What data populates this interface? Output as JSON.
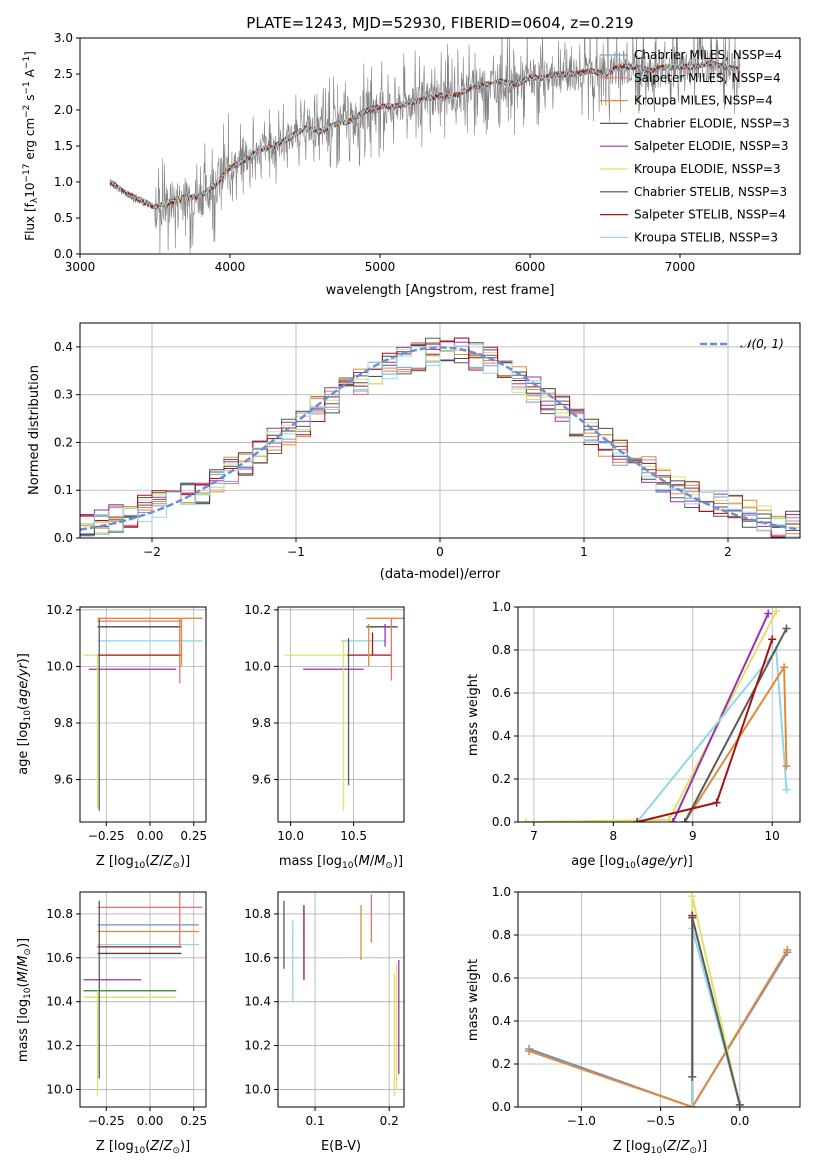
{
  "chart_data": [
    {
      "id": "spectrum",
      "type": "line",
      "title": "PLATE=1243, MJD=52930, FIBERID=0604, z=0.219",
      "xlabel": "wavelength [Angstrom, rest frame]",
      "ylabel": "Flux [f$_\\lambda$10$^{-17}$ erg cm$^{-2}$ s$^{-1}$ A$^{-1}$]",
      "xlim": [
        3000,
        7800
      ],
      "ylim": [
        0,
        3.0
      ],
      "xticks": [
        "3000",
        "4000",
        "5000",
        "6000",
        "7000"
      ],
      "yticks": [
        "0.0",
        "0.5",
        "1.0",
        "1.5",
        "2.0",
        "2.5",
        "3.0"
      ],
      "grid": false,
      "legend_position": "top-right",
      "data_line": {
        "name": "data",
        "color": "#808080",
        "x": [
          3200,
          3300,
          3400,
          3500,
          3600,
          3700,
          3800,
          3900,
          4000,
          4100,
          4200,
          4300,
          4400,
          4500,
          4600,
          4700,
          4800,
          4900,
          5000,
          5100,
          5200,
          5300,
          5400,
          5500,
          5600,
          5700,
          5800,
          5900,
          6000,
          6100,
          6200,
          6300,
          6400,
          6500,
          6600,
          6700,
          6800,
          6900,
          7000,
          7100,
          7200,
          7300,
          7400
        ],
        "y": [
          1.0,
          0.85,
          0.75,
          0.65,
          0.72,
          0.78,
          0.8,
          0.95,
          1.2,
          1.3,
          1.45,
          1.5,
          1.62,
          1.75,
          1.7,
          1.8,
          1.85,
          1.98,
          2.05,
          2.05,
          2.1,
          2.15,
          2.2,
          2.2,
          2.3,
          2.35,
          2.4,
          2.35,
          2.45,
          2.45,
          2.5,
          2.5,
          2.55,
          2.5,
          2.6,
          2.6,
          2.55,
          2.6,
          2.6,
          2.6,
          2.65,
          2.6,
          2.55
        ]
      },
      "series": [
        {
          "name": "Chabrier MILES, N$_{SSP}$=4",
          "color": "#7b9fd6"
        },
        {
          "name": "Salpeter MILES, N$_{SSP}$=4",
          "color": "#e8756b"
        },
        {
          "name": "Kroupa MILES, N$_{SSP}$=4",
          "color": "#e08a3b"
        },
        {
          "name": "Chabrier ELODIE, N$_{SSP}$=3",
          "color": "#5a5a5a"
        },
        {
          "name": "Salpeter ELODIE, N$_{SSP}$=3",
          "color": "#9b30b0"
        },
        {
          "name": "Kroupa ELODIE, N$_{SSP}$=3",
          "color": "#dde36a"
        },
        {
          "name": "Chabrier STELIB, N$_{SSP}$=3",
          "color": "#4a4a4a"
        },
        {
          "name": "Salpeter STELIB, N$_{SSP}$=4",
          "color": "#a31414"
        },
        {
          "name": "Kroupa STELIB, N$_{SSP}$=3",
          "color": "#8fd8e6"
        }
      ]
    },
    {
      "id": "residuals",
      "type": "line",
      "xlabel": "(data-model)/error",
      "ylabel": "Normed distribution",
      "xlim": [
        -2.5,
        2.5
      ],
      "ylim": [
        0,
        0.45
      ],
      "xticks": [
        "−2",
        "−1",
        "0",
        "1",
        "2"
      ],
      "yticks": [
        "0.0",
        "0.1",
        "0.2",
        "0.3",
        "0.4"
      ],
      "grid": true,
      "legend_position": "top-right",
      "gaussian": {
        "name": "$\\mathcal{N}(0,1)$",
        "color": "#6a8fd4"
      },
      "bin_edges_start": -2.5,
      "bin_width": 0.1,
      "base_values": [
        0.02,
        0.03,
        0.04,
        0.05,
        0.06,
        0.07,
        0.08,
        0.09,
        0.1,
        0.12,
        0.14,
        0.16,
        0.18,
        0.2,
        0.22,
        0.24,
        0.27,
        0.29,
        0.31,
        0.33,
        0.35,
        0.36,
        0.37,
        0.38,
        0.39,
        0.39,
        0.39,
        0.38,
        0.37,
        0.35,
        0.33,
        0.31,
        0.29,
        0.27,
        0.24,
        0.22,
        0.2,
        0.18,
        0.16,
        0.14,
        0.12,
        0.1,
        0.09,
        0.08,
        0.07,
        0.06,
        0.05,
        0.04,
        0.03,
        0.03
      ],
      "series_colors": [
        "#7b9fd6",
        "#e8756b",
        "#e08a3b",
        "#5a5a5a",
        "#9b30b0",
        "#dde36a",
        "#4a4a4a",
        "#a31414",
        "#8fd8e6"
      ]
    },
    {
      "id": "age-vs-Z",
      "type": "scatter",
      "xlabel": "Z [log$_{10}$(Z/Z$_\\odot$)]",
      "ylabel": "age  [log$_{10}$(age/yr)]",
      "xlim": [
        -0.4,
        0.32
      ],
      "ylim": [
        9.45,
        10.21
      ],
      "xticks": [
        "−0.25",
        "0.00",
        "0.25"
      ],
      "yticks": [
        "9.6",
        "9.8",
        "10.0",
        "10.2"
      ],
      "grid": true,
      "hlines": [
        {
          "y": 10.17,
          "x0": -0.3,
          "x1": 0.3,
          "color": "#e08a3b"
        },
        {
          "y": 10.16,
          "x0": -0.3,
          "x1": 0.18,
          "color": "#e8756b"
        },
        {
          "y": 10.14,
          "x0": -0.3,
          "x1": 0.18,
          "color": "#4a4a4a"
        },
        {
          "y": 10.09,
          "x0": -0.3,
          "x1": 0.3,
          "color": "#8fd8e6"
        },
        {
          "y": 10.04,
          "x0": -0.38,
          "x1": 0.18,
          "color": "#dde36a"
        },
        {
          "y": 10.04,
          "x0": -0.3,
          "x1": 0.18,
          "color": "#a31414"
        },
        {
          "y": 9.99,
          "x0": -0.35,
          "x1": 0.15,
          "color": "#9b30b0"
        }
      ],
      "vlines": [
        {
          "x": -0.29,
          "y0": 9.49,
          "y1": 10.17,
          "color": "#5a5a5a"
        },
        {
          "x": -0.3,
          "y0": 9.5,
          "y1": 10.04,
          "color": "#dde36a"
        },
        {
          "x": 0.17,
          "y0": 9.94,
          "y1": 10.17,
          "color": "#e8756b"
        },
        {
          "x": 0.18,
          "y0": 10.0,
          "y1": 10.17,
          "color": "#e08a3b"
        }
      ]
    },
    {
      "id": "age-vs-mass",
      "type": "scatter",
      "xlabel": "mass [log$_{10}$(M/M$_\\odot$)]",
      "xlim": [
        9.9,
        10.9
      ],
      "ylim": [
        9.45,
        10.21
      ],
      "xticks": [
        "10.0",
        "10.5"
      ],
      "yticks": [
        "9.6",
        "9.8",
        "10.0",
        "10.2"
      ],
      "grid": true,
      "hlines": [
        {
          "y": 10.17,
          "x0": 10.6,
          "x1": 10.9,
          "color": "#e08a3b"
        },
        {
          "y": 10.14,
          "x0": 10.6,
          "x1": 10.85,
          "color": "#4a4a4a"
        },
        {
          "y": 10.09,
          "x0": 10.4,
          "x1": 10.75,
          "color": "#8fd8e6"
        },
        {
          "y": 10.04,
          "x0": 9.95,
          "x1": 10.5,
          "color": "#dde36a"
        },
        {
          "y": 10.04,
          "x0": 10.45,
          "x1": 10.8,
          "color": "#a31414"
        },
        {
          "y": 9.99,
          "x0": 10.1,
          "x1": 10.58,
          "color": "#9b30b0"
        }
      ],
      "vlines": [
        {
          "x": 10.42,
          "y0": 9.49,
          "y1": 10.09,
          "color": "#dde36a"
        },
        {
          "x": 10.46,
          "y0": 9.58,
          "y1": 10.1,
          "color": "#5a5a5a"
        },
        {
          "x": 10.62,
          "y0": 10.0,
          "y1": 10.15,
          "color": "#e08a3b"
        },
        {
          "x": 10.65,
          "y0": 10.04,
          "y1": 10.12,
          "color": "#a31414"
        },
        {
          "x": 10.75,
          "y0": 10.07,
          "y1": 10.15,
          "color": "#9b30b0"
        },
        {
          "x": 10.8,
          "y0": 9.95,
          "y1": 10.17,
          "color": "#e8756b"
        }
      ]
    },
    {
      "id": "mass-weight-vs-age",
      "type": "line",
      "xlabel": "age  [log$_{10}$(age/yr)]",
      "ylabel": "mass weight",
      "xlim": [
        6.8,
        10.35
      ],
      "ylim": [
        0,
        1.0
      ],
      "xticks": [
        "7",
        "8",
        "9",
        "10"
      ],
      "yticks": [
        "0.0",
        "0.2",
        "0.4",
        "0.6",
        "0.8",
        "1.0"
      ],
      "grid": true,
      "series": [
        {
          "color": "#dde36a",
          "x": [
            6.9,
            8.7,
            10.05
          ],
          "y": [
            0.0,
            0.01,
            0.98
          ]
        },
        {
          "color": "#9b30b0",
          "x": [
            8.75,
            9.95
          ],
          "y": [
            0.0,
            0.97
          ]
        },
        {
          "color": "#8fd8e6",
          "x": [
            8.3,
            10.05,
            10.18
          ],
          "y": [
            0.0,
            0.8,
            0.15
          ]
        },
        {
          "color": "#e08a3b",
          "x": [
            8.9,
            10.15,
            10.18
          ],
          "y": [
            0.0,
            0.72,
            0.26
          ]
        },
        {
          "color": "#5a5a5a",
          "x": [
            8.9,
            10.18
          ],
          "y": [
            0.0,
            0.9
          ]
        },
        {
          "color": "#a31414",
          "x": [
            8.3,
            9.3,
            10.0
          ],
          "y": [
            0.0,
            0.09,
            0.85
          ]
        }
      ]
    },
    {
      "id": "mass-vs-Z",
      "type": "scatter",
      "xlabel": "Z [log$_{10}$(Z/Z$_\\odot$)]",
      "ylabel": "mass [log$_{10}$(M/M$_\\odot$)]",
      "xlim": [
        -0.4,
        0.32
      ],
      "ylim": [
        9.92,
        10.9
      ],
      "xticks": [
        "−0.25",
        "0.00",
        "0.25"
      ],
      "yticks": [
        "10.0",
        "10.2",
        "10.4",
        "10.6",
        "10.8"
      ],
      "grid": true,
      "hlines": [
        {
          "y": 10.83,
          "x0": -0.3,
          "x1": 0.3,
          "color": "#e8756b"
        },
        {
          "y": 10.75,
          "x0": -0.3,
          "x1": 0.28,
          "color": "#6a8fd4"
        },
        {
          "y": 10.72,
          "x0": -0.3,
          "x1": 0.28,
          "color": "#e08a3b"
        },
        {
          "y": 10.66,
          "x0": -0.3,
          "x1": 0.28,
          "color": "#8fd8e6"
        },
        {
          "y": 10.65,
          "x0": -0.3,
          "x1": 0.18,
          "color": "#a31414"
        },
        {
          "y": 10.62,
          "x0": -0.3,
          "x1": 0.18,
          "color": "#4a4a4a"
        },
        {
          "y": 10.5,
          "x0": -0.38,
          "x1": -0.05,
          "color": "#9b30b0"
        },
        {
          "y": 10.45,
          "x0": -0.38,
          "x1": 0.15,
          "color": "#2e7d32"
        },
        {
          "y": 10.42,
          "x0": -0.38,
          "x1": 0.15,
          "color": "#dde36a"
        }
      ],
      "vlines": [
        {
          "x": -0.29,
          "y0": 10.05,
          "y1": 10.86,
          "color": "#5a5a5a"
        },
        {
          "x": -0.3,
          "y0": 9.97,
          "y1": 10.45,
          "color": "#dde36a"
        },
        {
          "x": 0.17,
          "y0": 10.65,
          "y1": 10.9,
          "color": "#e8756b"
        }
      ]
    },
    {
      "id": "mass-vs-EBV",
      "type": "scatter",
      "xlabel": "E(B-V)",
      "xlim": [
        0.05,
        0.22
      ],
      "ylim": [
        9.92,
        10.9
      ],
      "xticks": [
        "0.1",
        "0.2"
      ],
      "yticks": [
        "10.0",
        "10.2",
        "10.4",
        "10.6",
        "10.8"
      ],
      "grid": true,
      "vlines": [
        {
          "x": 0.058,
          "y0": 10.55,
          "y1": 10.86,
          "color": "#5a5a5a"
        },
        {
          "x": 0.07,
          "y0": 10.4,
          "y1": 10.77,
          "color": "#8fd8e6"
        },
        {
          "x": 0.085,
          "y0": 10.5,
          "y1": 10.84,
          "color": "#a31414"
        },
        {
          "x": 0.162,
          "y0": 10.59,
          "y1": 10.84,
          "color": "#e08a3b"
        },
        {
          "x": 0.176,
          "y0": 10.67,
          "y1": 10.89,
          "color": "#e8756b"
        },
        {
          "x": 0.207,
          "y0": 9.97,
          "y1": 10.53,
          "color": "#dde36a"
        },
        {
          "x": 0.21,
          "y0": 10.0,
          "y1": 10.57,
          "color": "#dde36a"
        },
        {
          "x": 0.213,
          "y0": 10.07,
          "y1": 10.59,
          "color": "#9b30b0"
        }
      ]
    },
    {
      "id": "mass-weight-vs-Z",
      "type": "line",
      "xlabel": "Z [log$_{10}$(Z/Z$_\\odot$)]",
      "ylabel": "mass weight",
      "xlim": [
        -1.4,
        0.38
      ],
      "ylim": [
        0,
        1.0
      ],
      "xticks": [
        "−1.0",
        "−0.5",
        "0.0"
      ],
      "yticks": [
        "0.0",
        "0.2",
        "0.4",
        "0.6",
        "0.8",
        "1.0"
      ],
      "grid": true,
      "series": [
        {
          "color": "#6a8fd4",
          "x": [
            -1.33,
            -0.3,
            0.3
          ],
          "y": [
            0.27,
            0.0,
            0.72
          ]
        },
        {
          "color": "#e08a3b",
          "x": [
            -1.33,
            -0.3,
            0.3
          ],
          "y": [
            0.26,
            0.0,
            0.73
          ]
        },
        {
          "color": "#dde36a",
          "x": [
            -0.3,
            -0.3,
            0.0
          ],
          "y": [
            0.0,
            0.98,
            0.01
          ]
        },
        {
          "color": "#a31414",
          "x": [
            -0.3,
            -0.3
          ],
          "y": [
            0.0,
            0.89
          ]
        },
        {
          "color": "#8fd8e6",
          "x": [
            -0.3,
            -0.3,
            0.0
          ],
          "y": [
            0.0,
            0.83,
            0.01
          ]
        },
        {
          "color": "#5a5a5a",
          "x": [
            -0.3,
            -0.3,
            0.0
          ],
          "y": [
            0.14,
            0.88,
            0.01
          ]
        }
      ]
    }
  ]
}
